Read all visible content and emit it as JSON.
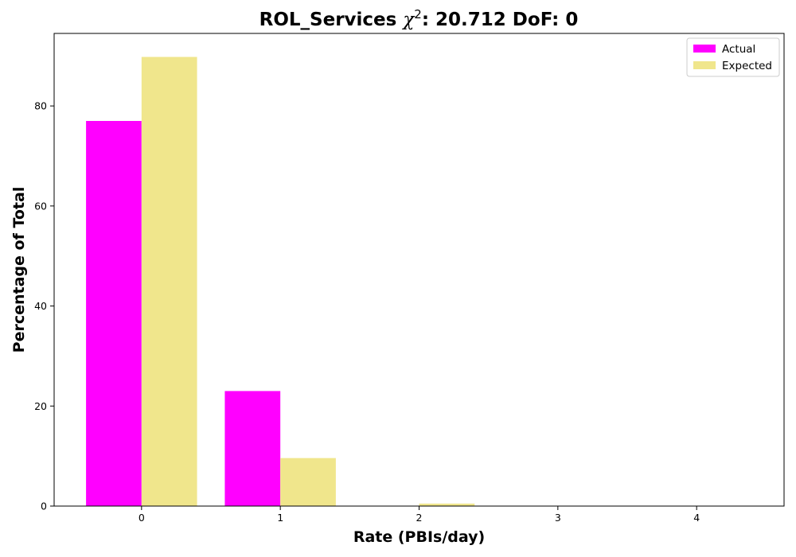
{
  "chart_data": {
    "type": "bar",
    "title": {
      "prefix": "ROL_Services ",
      "chi": "χ",
      "sup": "2",
      "suffix": ": 20.712 DoF: 0"
    },
    "xlabel": "Rate (PBIs/day)",
    "ylabel": "Percentage of Total",
    "categories": [
      "0",
      "1",
      "2",
      "3",
      "4"
    ],
    "x": [
      0,
      1,
      2,
      3,
      4
    ],
    "xlim": [
      -0.63,
      4.63
    ],
    "ylim": [
      0,
      94.5
    ],
    "yticks": [
      0,
      20,
      40,
      60,
      80
    ],
    "bar_width": 0.4,
    "grid": false,
    "legend_position": "top-right",
    "series": [
      {
        "name": "Actual",
        "values": [
          77.0,
          23.0,
          0,
          0,
          0
        ],
        "color": "#ff00ff"
      },
      {
        "name": "Expected",
        "values": [
          89.8,
          9.6,
          0.5,
          0,
          0
        ],
        "color": "#f0e68c"
      }
    ]
  }
}
